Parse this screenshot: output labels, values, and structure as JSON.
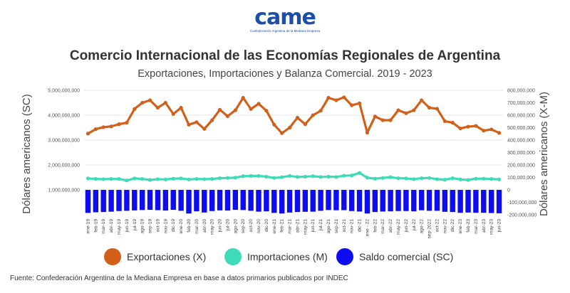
{
  "logo": {
    "text": "came",
    "tagline": "Confederación Argentina de la Mediana Empresa"
  },
  "title": "Comercio Internacional de las Economías Regionales de Argentina",
  "subtitle": "Exportaciones, Importaciones y Balanza Comercial. 2019 - 2023",
  "source": "Fuente: Confederación Argentina de la Mediana Empresa en base a datos primarios publicados por INDEC",
  "colors": {
    "exports": "#d2601a",
    "imports": "#3ddbb7",
    "balance": "#0d0df0",
    "grid": "#e6e6e6",
    "text": "#333333"
  },
  "chart_data": {
    "type": "line",
    "categories": [
      "ene-19",
      "feb-19",
      "mar-19",
      "abr-19",
      "may-19",
      "jun-19",
      "jul-19",
      "ago-19",
      "sep-19",
      "oct-19",
      "nov-19",
      "dic-19",
      "ene-20",
      "feb-20",
      "mar-20",
      "abr-20",
      "may-20",
      "jun-20",
      "jul-20",
      "ago-20",
      "sep-20",
      "oct-20",
      "nov-20",
      "dic-20",
      "ene-21",
      "feb-21",
      "mar-21",
      "abr-21",
      "may-21",
      "jun-21",
      "jul-21",
      "ago-21",
      "sep-21",
      "oct-21",
      "nov-21",
      "dic-21",
      "ene - 22",
      "feb-22",
      "mar-22",
      "abr-22",
      "may-22",
      "jun-22",
      "jul-22",
      "ago-22",
      "sep-2022",
      "oct-22",
      "nov-22",
      "dic-22",
      "ene-23",
      "feb-23",
      "mar-23",
      "abr-23",
      "may-23",
      "jun-23"
    ],
    "tick_labels": [
      "ene-19",
      "feb-19",
      "mar-19",
      "abr-19",
      "may-19",
      "jun-19",
      "jul-19",
      "ago-19",
      "sep-19",
      "oct-19",
      "nov-19",
      "dic-19",
      "ene-20",
      "feb-20",
      "mar-20",
      "abr-20",
      "may-20",
      "jun-20",
      "jul-20",
      "ago-20",
      "sep-20",
      "oct-20",
      "nov-20",
      "dic-20",
      "ene-21",
      "feb-21",
      "mar-21",
      "abr-21",
      "may-21",
      "jun-21",
      "jul-21",
      "ago-21",
      "sep-21",
      "oct-21",
      "nov-21",
      "dic-21",
      "ene - 22",
      "feb-22",
      "mar-22",
      "abr-22",
      "may-22",
      "jun-22",
      "jul-22",
      "ago-22",
      "sep-2022",
      "oct-22",
      "nov-22",
      "dic-22",
      "ene-23",
      "feb-23",
      "mar-23",
      "abr-23",
      "may-23",
      "jun-23"
    ],
    "series": [
      {
        "name": "Exportaciones (X)",
        "axis": "left",
        "values": [
          3260000000,
          3440000000,
          3520000000,
          3550000000,
          3640000000,
          3700000000,
          4250000000,
          4500000000,
          4600000000,
          4300000000,
          4500000000,
          4050000000,
          4300000000,
          3620000000,
          3720000000,
          3450000000,
          3800000000,
          4220000000,
          3960000000,
          4200000000,
          4700000000,
          4250000000,
          4460000000,
          4180000000,
          3620000000,
          3280000000,
          3500000000,
          3900000000,
          3640000000,
          4000000000,
          4180000000,
          4700000000,
          4600000000,
          4720000000,
          4400000000,
          4480000000,
          3300000000,
          3950000000,
          3800000000,
          3800000000,
          4200000000,
          4080000000,
          4200000000,
          4600000000,
          4300000000,
          4260000000,
          3760000000,
          3700000000,
          3470000000,
          3540000000,
          3570000000,
          3380000000,
          3430000000,
          3290000000
        ]
      },
      {
        "name": "Importaciones (M)",
        "axis": "left",
        "values": [
          1460000000,
          1440000000,
          1430000000,
          1440000000,
          1440000000,
          1380000000,
          1460000000,
          1440000000,
          1400000000,
          1430000000,
          1420000000,
          1450000000,
          1460000000,
          1420000000,
          1440000000,
          1430000000,
          1440000000,
          1470000000,
          1480000000,
          1490000000,
          1550000000,
          1560000000,
          1560000000,
          1530000000,
          1480000000,
          1510000000,
          1560000000,
          1520000000,
          1530000000,
          1550000000,
          1520000000,
          1530000000,
          1520000000,
          1570000000,
          1580000000,
          1680000000,
          1490000000,
          1450000000,
          1480000000,
          1510000000,
          1470000000,
          1460000000,
          1430000000,
          1470000000,
          1480000000,
          1430000000,
          1410000000,
          1470000000,
          1420000000,
          1400000000,
          1450000000,
          1450000000,
          1440000000,
          1420000000
        ]
      },
      {
        "name": "Saldo comercial (SC)",
        "axis": "right",
        "type": "bar",
        "values": [
          -185000000,
          -180000000,
          -178000000,
          -175000000,
          -170000000,
          -168000000,
          -165000000,
          -162000000,
          -160000000,
          -163000000,
          -166000000,
          -160000000,
          -168000000,
          -190000000,
          -172000000,
          -182000000,
          -170000000,
          -165000000,
          -166000000,
          -160000000,
          -162000000,
          -168000000,
          -175000000,
          -172000000,
          -185000000,
          -190000000,
          -182000000,
          -178000000,
          -176000000,
          -175000000,
          -168000000,
          -162000000,
          -164000000,
          -163000000,
          -170000000,
          -174000000,
          -190000000,
          -178000000,
          -174000000,
          -172000000,
          -170000000,
          -170000000,
          -172000000,
          -164000000,
          -168000000,
          -168000000,
          -176000000,
          -178000000,
          -184000000,
          -182000000,
          -184000000,
          -184000000,
          -186000000,
          -188000000
        ]
      }
    ],
    "left_axis": {
      "label": "Dólares americanos (SC)",
      "min": 0,
      "max": 5000000000,
      "ticks": [
        1000000000,
        2000000000,
        3000000000,
        4000000000,
        5000000000
      ],
      "tick_labels": [
        "1,000,000,000",
        "2,000,000,000",
        "3,000,000,000",
        "4,000,000,000",
        "5,000,000,000"
      ]
    },
    "right_axis": {
      "label": "Dólares americanos (X-M)",
      "min": -200000000,
      "max": 800000000,
      "ticks": [
        -200000000,
        -100000000,
        0,
        100000000,
        200000000,
        300000000,
        400000000,
        500000000,
        600000000,
        700000000,
        800000000
      ],
      "tick_labels": [
        "-200,000,000",
        "-100,000,000",
        "0",
        "100,000,000",
        "200,000,000",
        "300,000,000",
        "400,000,000",
        "500,000,000",
        "600,000,000",
        "700,000,000",
        "800,000,000"
      ]
    },
    "legend": {
      "position": "bottom",
      "items": [
        "Exportaciones (X)",
        "Importaciones (M)",
        "Saldo comercial (SC)"
      ]
    }
  }
}
